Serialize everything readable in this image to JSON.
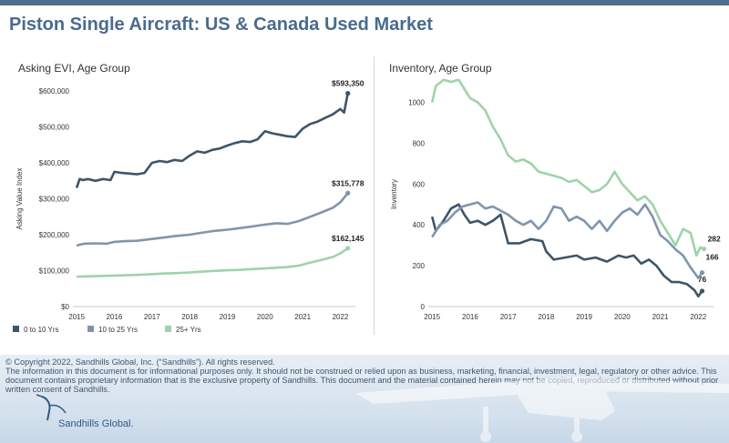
{
  "header": {
    "title": "Piston Single Aircraft:  US & Canada Used Market"
  },
  "footer": {
    "copyright": "© Copyright 2022, Sandhills Global, Inc. (“Sandhills”). All rights reserved.",
    "disclaimer": "The information in this document is for informational purposes only.  It should not be construed or relied upon as business, marketing, financial, investment, legal, regulatory or other advice. This document contains proprietary information that is the exclusive property of Sandhills. This document and the material contained herein may not be copied, reproduced or distributed without prior written consent of Sandhills.",
    "logo_text": "Sandhills Global."
  },
  "colors": {
    "bar": "#4f6d8c",
    "title": "#4a6b8e",
    "series_0_10": "#3e5568",
    "series_10_25": "#8095ad",
    "series_25plus": "#9fd3a8"
  },
  "chart_data": [
    {
      "type": "line",
      "title": "Asking EVI, Age Group",
      "ylabel": "Asking Value Index",
      "ylim": [
        0,
        600000
      ],
      "yticks": [
        "$0",
        "$100,000",
        "$200,000",
        "$300,000",
        "$400,000",
        "$500,000",
        "$600,000"
      ],
      "xlim": [
        2014.9,
        2022.4
      ],
      "xticks": [
        "2015",
        "2016",
        "2017",
        "2018",
        "2019",
        "2020",
        "2021",
        "2022"
      ],
      "legend": "bottom",
      "series": [
        {
          "name": "0 to 10 Yrs",
          "x": [
            2015.0,
            2015.08,
            2015.17,
            2015.3,
            2015.5,
            2015.7,
            2015.9,
            2016.0,
            2016.2,
            2016.4,
            2016.6,
            2016.8,
            2017.0,
            2017.2,
            2017.4,
            2017.6,
            2017.8,
            2018.0,
            2018.2,
            2018.4,
            2018.6,
            2018.8,
            2019.0,
            2019.2,
            2019.4,
            2019.6,
            2019.8,
            2020.0,
            2020.2,
            2020.4,
            2020.6,
            2020.8,
            2021.0,
            2021.2,
            2021.4,
            2021.6,
            2021.8,
            2022.0,
            2022.1,
            2022.2
          ],
          "values": [
            330000,
            355000,
            352000,
            355000,
            350000,
            355000,
            352000,
            375000,
            372000,
            370000,
            368000,
            372000,
            400000,
            405000,
            402000,
            408000,
            405000,
            420000,
            432000,
            428000,
            436000,
            440000,
            448000,
            455000,
            460000,
            458000,
            465000,
            488000,
            482000,
            478000,
            474000,
            472000,
            495000,
            508000,
            515000,
            525000,
            535000,
            550000,
            540000,
            593350
          ],
          "end_label": "$593,350"
        },
        {
          "name": "10 to 25 Yrs",
          "x": [
            2015.0,
            2015.2,
            2015.5,
            2015.8,
            2016.0,
            2016.3,
            2016.6,
            2017.0,
            2017.3,
            2017.6,
            2018.0,
            2018.3,
            2018.6,
            2019.0,
            2019.3,
            2019.6,
            2020.0,
            2020.3,
            2020.6,
            2020.9,
            2021.2,
            2021.5,
            2021.8,
            2022.0,
            2022.2
          ],
          "values": [
            170000,
            175000,
            176000,
            175000,
            180000,
            182000,
            183000,
            188000,
            192000,
            196000,
            200000,
            205000,
            210000,
            214000,
            218000,
            222000,
            228000,
            232000,
            230000,
            238000,
            250000,
            262000,
            275000,
            290000,
            315778
          ],
          "end_label": "$315,778"
        },
        {
          "name": "25+ Yrs",
          "x": [
            2015.0,
            2015.3,
            2015.6,
            2016.0,
            2016.3,
            2016.6,
            2017.0,
            2017.3,
            2017.6,
            2018.0,
            2018.3,
            2018.6,
            2019.0,
            2019.3,
            2019.6,
            2020.0,
            2020.3,
            2020.6,
            2020.9,
            2021.2,
            2021.5,
            2021.8,
            2022.0,
            2022.2
          ],
          "values": [
            83000,
            84000,
            85000,
            86000,
            87000,
            88000,
            90000,
            92000,
            93000,
            95000,
            97000,
            99000,
            101000,
            102000,
            104000,
            106000,
            108000,
            110000,
            114000,
            122000,
            130000,
            138000,
            148000,
            162145
          ],
          "end_label": "$162,145"
        }
      ]
    },
    {
      "type": "line",
      "title": "Inventory, Age Group",
      "ylabel": "Inventory",
      "ylim": [
        0,
        1100
      ],
      "yticks": [
        "0",
        "200",
        "400",
        "600",
        "800",
        "1000"
      ],
      "xlim": [
        2014.9,
        2022.4
      ],
      "xticks": [
        "2015",
        "2016",
        "2017",
        "2018",
        "2019",
        "2020",
        "2021",
        "2022"
      ],
      "series": [
        {
          "name": "0 to 10 Yrs",
          "x": [
            2015.0,
            2015.1,
            2015.3,
            2015.5,
            2015.7,
            2015.85,
            2016.0,
            2016.2,
            2016.4,
            2016.6,
            2016.8,
            2017.0,
            2017.3,
            2017.6,
            2017.9,
            2018.0,
            2018.2,
            2018.5,
            2018.8,
            2019.0,
            2019.3,
            2019.6,
            2019.9,
            2020.1,
            2020.3,
            2020.5,
            2020.7,
            2020.9,
            2021.1,
            2021.3,
            2021.5,
            2021.7,
            2021.9,
            2022.0,
            2022.1
          ],
          "values": [
            440,
            370,
            420,
            480,
            500,
            450,
            410,
            420,
            400,
            420,
            450,
            310,
            310,
            330,
            320,
            270,
            230,
            240,
            250,
            230,
            240,
            220,
            250,
            240,
            250,
            210,
            230,
            200,
            150,
            120,
            120,
            110,
            80,
            50,
            76
          ],
          "end_label": "76"
        },
        {
          "name": "10 to 25 Yrs",
          "x": [
            2015.0,
            2015.2,
            2015.4,
            2015.6,
            2015.8,
            2016.0,
            2016.2,
            2016.4,
            2016.6,
            2016.8,
            2017.0,
            2017.2,
            2017.4,
            2017.6,
            2017.8,
            2018.0,
            2018.2,
            2018.4,
            2018.6,
            2018.8,
            2019.0,
            2019.2,
            2019.4,
            2019.6,
            2019.8,
            2020.0,
            2020.2,
            2020.4,
            2020.6,
            2020.8,
            2021.0,
            2021.2,
            2021.4,
            2021.6,
            2021.8,
            2022.0,
            2022.1
          ],
          "values": [
            340,
            400,
            420,
            460,
            490,
            500,
            510,
            480,
            490,
            470,
            450,
            420,
            400,
            420,
            380,
            420,
            490,
            480,
            420,
            440,
            420,
            380,
            420,
            370,
            420,
            460,
            480,
            450,
            500,
            440,
            350,
            320,
            280,
            250,
            190,
            140,
            166
          ],
          "end_label": "166"
        },
        {
          "name": "25+ Yrs",
          "x": [
            2015.0,
            2015.1,
            2015.3,
            2015.5,
            2015.7,
            2015.9,
            2016.0,
            2016.2,
            2016.4,
            2016.6,
            2016.8,
            2017.0,
            2017.2,
            2017.4,
            2017.6,
            2017.8,
            2018.0,
            2018.2,
            2018.4,
            2018.6,
            2018.8,
            2019.0,
            2019.2,
            2019.4,
            2019.6,
            2019.8,
            2020.0,
            2020.2,
            2020.4,
            2020.6,
            2020.8,
            2021.0,
            2021.2,
            2021.4,
            2021.6,
            2021.8,
            2021.95,
            2022.05,
            2022.15
          ],
          "values": [
            1000,
            1080,
            1110,
            1100,
            1110,
            1050,
            1020,
            1000,
            960,
            880,
            820,
            740,
            710,
            720,
            700,
            660,
            650,
            640,
            630,
            610,
            620,
            590,
            560,
            570,
            600,
            660,
            600,
            560,
            520,
            540,
            500,
            420,
            360,
            300,
            380,
            360,
            250,
            290,
            282
          ],
          "end_label": "282"
        }
      ]
    }
  ]
}
